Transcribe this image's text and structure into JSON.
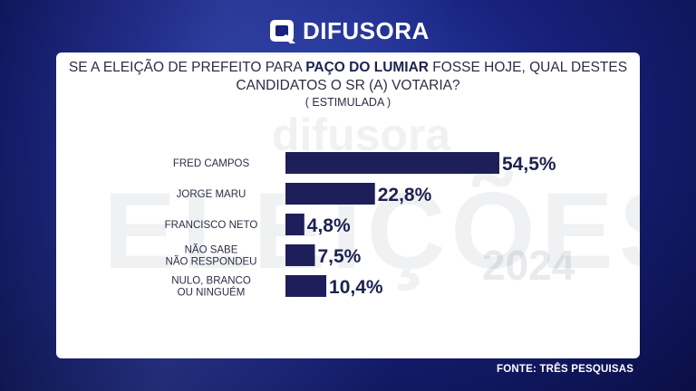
{
  "brand": {
    "logo_text": "DIFUSORA",
    "watermark_name": "difusora",
    "watermark_word": "ELEIÇÕES",
    "watermark_year": "2024"
  },
  "question": {
    "line1_prefix": "SE A ELEIÇÃO DE PREFEITO PARA ",
    "line1_bold": "PAÇO DO LUMIAR",
    "line1_suffix": " FOSSE HOJE, QUAL DESTES",
    "line2": "CANDIDATOS O SR (A) VOTARIA?",
    "type": "( ESTIMULADA )"
  },
  "chart_data": {
    "type": "bar",
    "orientation": "horizontal",
    "categories": [
      [
        "FRED CAMPOS"
      ],
      [
        "JORGE MARU"
      ],
      [
        "FRANCISCO NETO"
      ],
      [
        "NÃO SABE",
        "NÃO RESPONDEU"
      ],
      [
        "NULO, BRANCO",
        "OU NINGUÉM"
      ]
    ],
    "values": [
      54.5,
      22.8,
      4.8,
      7.5,
      10.4
    ],
    "value_labels": [
      "54,5%",
      "22,8%",
      "4,8%",
      "7,5%",
      "10,4%"
    ],
    "unit": "%",
    "bar_color": "#1e1f5a",
    "xlim": [
      0,
      54.5
    ]
  },
  "source": "FONTE: TRÊS PESQUISAS"
}
